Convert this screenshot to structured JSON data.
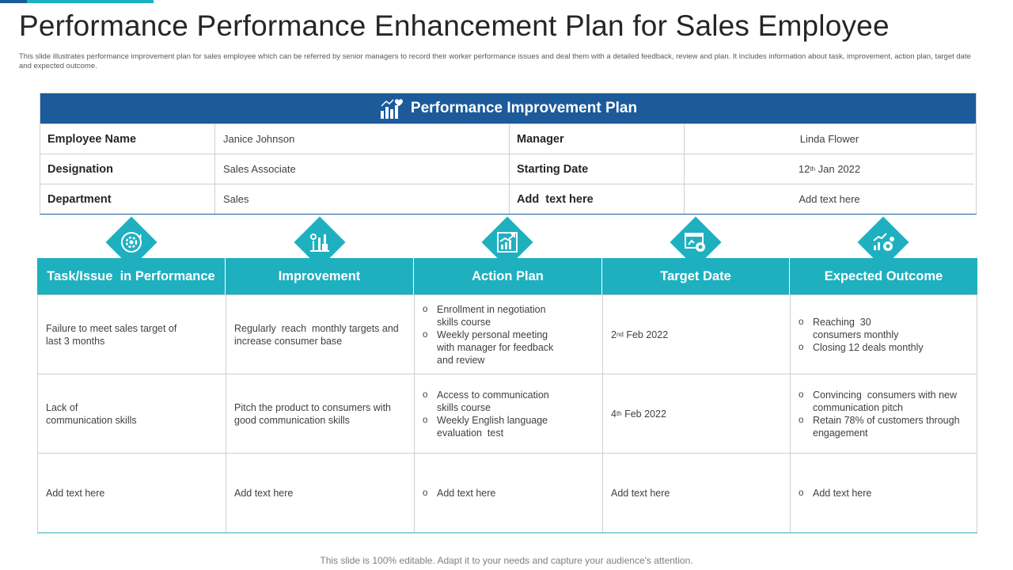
{
  "slide": {
    "title": "Performance Performance Enhancement Plan for Sales Employee",
    "subtitle": "This slide illustrates performance improvement plan  for sales employee  which can be referred by senior managers to record their worker performance issues and deal them  with a detailed feedback, review and plan. It includes information about task, improvement,  action plan,  target date and expected outcome.",
    "footer": "This slide is 100% editable. Adapt it to your needs and capture your audience's attention."
  },
  "colors": {
    "navy": "#1c5a9a",
    "teal": "#1fb0c0"
  },
  "pip": {
    "header": "Performance Improvement Plan",
    "header_icon": "bar-chart-heart-icon",
    "rows": [
      {
        "label1": "Employee Name",
        "value1": "Janice Johnson",
        "label2": "Manager",
        "value2": "Linda Flower"
      },
      {
        "label1": "Designation",
        "value1": "Sales Associate",
        "label2": "Starting Date",
        "value2_num": "12",
        "value2_sup": "th",
        "value2_rest": " Jan 2022"
      },
      {
        "label1": "Department",
        "value1": "Sales",
        "label2": "Add  text here",
        "value2": "Add text here"
      }
    ]
  },
  "icons": [
    "gear-refresh-icon",
    "tools-icon",
    "growth-chart-icon",
    "settings-window-icon",
    "chart-gears-icon"
  ],
  "plan": {
    "headers": [
      "Task/Issue  in Performance",
      "Improvement",
      "Action Plan",
      "Target Date",
      "Expected Outcome"
    ],
    "rows": [
      {
        "task": [
          "Failure to meet sales target of",
          "last 3 months"
        ],
        "improvement": [
          "Regularly  reach  monthly targets and",
          "increase consumer base"
        ],
        "actions": [
          "Enrollment  in negotiation skills course",
          "Weekly personal  meeting with manager for feedback  and review"
        ],
        "date_num": "2",
        "date_sup": "nd",
        "date_rest": " Feb 2022",
        "outcomes": [
          "Reaching  30 consumers monthly",
          "Closing 12 deals monthly"
        ]
      },
      {
        "task": [
          "Lack of",
          "communication skills"
        ],
        "improvement": [
          "Pitch the product to consumers with",
          "good communication skills"
        ],
        "actions": [
          "Access to communication skills course",
          "Weekly English language evaluation  test"
        ],
        "date_num": "4",
        "date_sup": "th",
        "date_rest": " Feb 2022",
        "outcomes": [
          "Convincing  consumers with new communication pitch",
          "Retain 78% of customers through  engagement"
        ]
      },
      {
        "task": [
          "Add text here"
        ],
        "improvement": [
          "Add text here"
        ],
        "actions": [
          "Add text here"
        ],
        "date_text": "Add text here",
        "outcomes": [
          "Add text here"
        ]
      }
    ]
  }
}
